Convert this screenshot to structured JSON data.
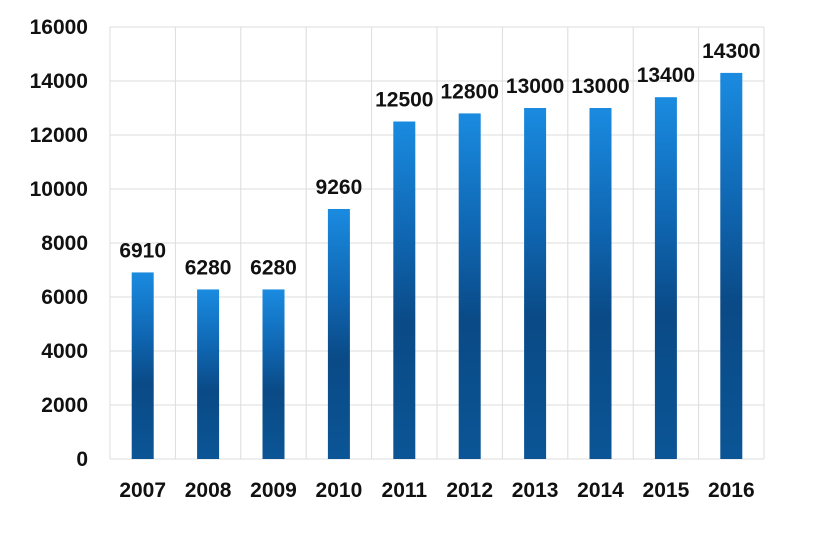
{
  "chart_data": {
    "type": "bar",
    "title": "",
    "xlabel": "",
    "ylabel": "",
    "categories": [
      "2007",
      "2008",
      "2009",
      "2010",
      "2011",
      "2012",
      "2013",
      "2014",
      "2015",
      "2016"
    ],
    "values": [
      6910,
      6280,
      6280,
      9260,
      12500,
      12800,
      13000,
      13000,
      13400,
      14300
    ],
    "data_labels": [
      "6910",
      "6280",
      "6280",
      "9260",
      "12500",
      "12800",
      "13000",
      "13000",
      "13400",
      "14300"
    ],
    "ylim": [
      0,
      16000
    ],
    "yticks": [
      0,
      2000,
      4000,
      6000,
      8000,
      10000,
      12000,
      14000,
      16000
    ],
    "ytick_labels": [
      "0",
      "2000",
      "4000",
      "6000",
      "8000",
      "10000",
      "12000",
      "14000",
      "16000"
    ],
    "grid": true,
    "legend": "none",
    "colors": {
      "bar_top": "#1a8be0",
      "bar_bottom": "#0a4a86",
      "grid": "#dcdcdc",
      "text": "#111111"
    }
  }
}
